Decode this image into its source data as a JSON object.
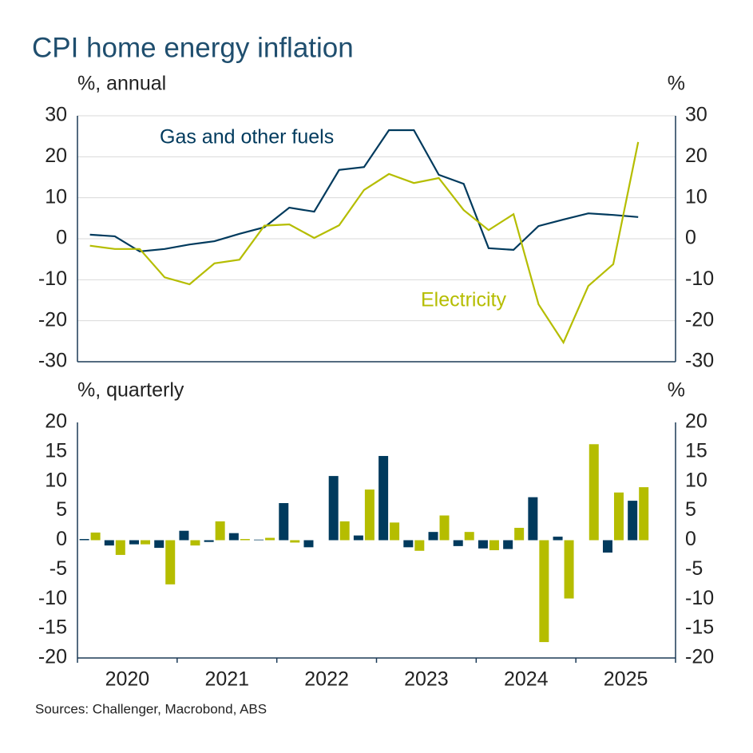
{
  "title": "CPI home energy inflation",
  "source": "Sources: Challenger, Macrobond, ABS",
  "chart_data": [
    {
      "type": "line",
      "y_label": "%, annual",
      "y2_label": "%",
      "x": [
        2020.125,
        2020.375,
        2020.625,
        2020.875,
        2021.125,
        2021.375,
        2021.625,
        2021.875,
        2022.125,
        2022.375,
        2022.625,
        2022.875,
        2023.125,
        2023.375,
        2023.625,
        2023.875,
        2024.125,
        2024.375,
        2024.625,
        2024.875,
        2025.125,
        2025.375,
        2025.625
      ],
      "xlim": [
        2020,
        2026
      ],
      "series": [
        {
          "name": "Gas and other fuels",
          "color": "#003a5d",
          "values": [
            1.0,
            0.6,
            -3.1,
            -2.5,
            -1.4,
            -0.6,
            1.2,
            2.8,
            7.6,
            6.6,
            16.8,
            17.5,
            26.5,
            26.5,
            15.6,
            13.4,
            -2.3,
            -2.7,
            3.1,
            4.7,
            6.2,
            5.8,
            5.3
          ]
        },
        {
          "name": "Electricity",
          "color": "#b5bd00",
          "values": [
            -1.7,
            -2.5,
            -2.5,
            -9.4,
            -11.1,
            -6.0,
            -5.1,
            3.2,
            3.5,
            0.2,
            3.3,
            11.9,
            15.8,
            13.6,
            14.8,
            7.0,
            2.1,
            6.0,
            -16.0,
            -25.3,
            -11.5,
            -6.2,
            23.6
          ]
        }
      ],
      "ylim": [
        -30,
        30
      ],
      "yticks": [
        -30,
        -20,
        -10,
        0,
        10,
        20,
        30
      ],
      "y2lim": [
        -30,
        30
      ],
      "y2ticks": [
        -30,
        -20,
        -10,
        0,
        10,
        20,
        30
      ],
      "grid": true
    },
    {
      "type": "bar",
      "y_label": "%, quarterly",
      "y2_label": "%",
      "x": [
        2020.125,
        2020.375,
        2020.625,
        2020.875,
        2021.125,
        2021.375,
        2021.625,
        2021.875,
        2022.125,
        2022.375,
        2022.625,
        2022.875,
        2023.125,
        2023.375,
        2023.625,
        2023.875,
        2024.125,
        2024.375,
        2024.625,
        2024.875,
        2025.125,
        2025.375,
        2025.625
      ],
      "xlim": [
        2020,
        2026
      ],
      "xticks": [
        {
          "value": 2020.5,
          "label": "2020"
        },
        {
          "value": 2021.5,
          "label": "2021"
        },
        {
          "value": 2022.5,
          "label": "2022"
        },
        {
          "value": 2023.5,
          "label": "2023"
        },
        {
          "value": 2024.5,
          "label": "2024"
        },
        {
          "value": 2025.5,
          "label": "2025"
        }
      ],
      "series": [
        {
          "color": "#003a5d",
          "values": [
            0.2,
            -0.9,
            -0.7,
            -1.3,
            1.6,
            -0.3,
            1.2,
            0.1,
            6.3,
            -1.2,
            10.9,
            0.8,
            14.3,
            -1.2,
            1.4,
            -1.0,
            -1.4,
            -1.5,
            7.3,
            0.6,
            0,
            -2.1,
            6.7
          ]
        },
        {
          "color": "#b5bd00",
          "values": [
            1.3,
            -2.5,
            -0.7,
            -7.5,
            -0.9,
            3.2,
            0.2,
            0.4,
            -0.4,
            0,
            3.2,
            8.6,
            3.0,
            -1.8,
            4.2,
            1.4,
            -1.7,
            2.1,
            -17.3,
            -9.9,
            16.3,
            8.1,
            9.0
          ]
        }
      ],
      "ylim": [
        -20,
        20
      ],
      "yticks": [
        -20,
        -15,
        -10,
        -5,
        0,
        5,
        10,
        15,
        20
      ],
      "y2lim": [
        -20,
        20
      ],
      "y2ticks": [
        -20,
        -15,
        -10,
        -5,
        0,
        5,
        10,
        15,
        20
      ],
      "grid": false
    }
  ]
}
